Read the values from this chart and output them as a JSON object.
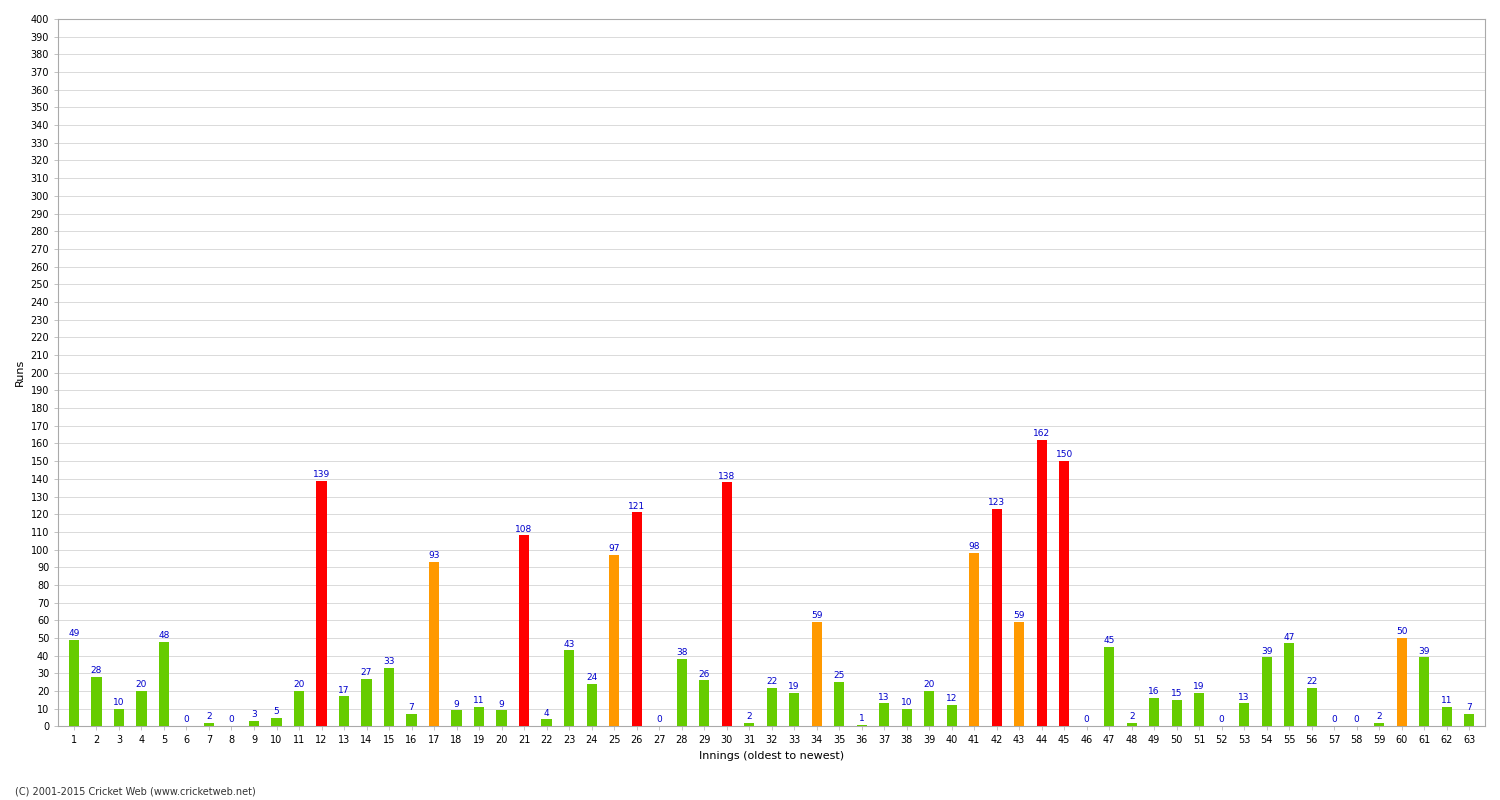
{
  "xlabel": "Innings (oldest to newest)",
  "ylabel": "Runs",
  "background_color": "#ffffff",
  "grid_color": "#cccccc",
  "ylim": [
    0,
    400
  ],
  "innings": [
    {
      "num": 1,
      "runs": 49,
      "color": "#66cc00"
    },
    {
      "num": 2,
      "runs": 28,
      "color": "#66cc00"
    },
    {
      "num": 3,
      "runs": 10,
      "color": "#66cc00"
    },
    {
      "num": 4,
      "runs": 20,
      "color": "#66cc00"
    },
    {
      "num": 5,
      "runs": 48,
      "color": "#66cc00"
    },
    {
      "num": 6,
      "runs": 0,
      "color": "#66cc00"
    },
    {
      "num": 7,
      "runs": 2,
      "color": "#66cc00"
    },
    {
      "num": 8,
      "runs": 0,
      "color": "#66cc00"
    },
    {
      "num": 9,
      "runs": 3,
      "color": "#66cc00"
    },
    {
      "num": 10,
      "runs": 5,
      "color": "#66cc00"
    },
    {
      "num": 11,
      "runs": 20,
      "color": "#66cc00"
    },
    {
      "num": 12,
      "runs": 139,
      "color": "#ff0000"
    },
    {
      "num": 13,
      "runs": 17,
      "color": "#66cc00"
    },
    {
      "num": 14,
      "runs": 27,
      "color": "#66cc00"
    },
    {
      "num": 15,
      "runs": 33,
      "color": "#66cc00"
    },
    {
      "num": 16,
      "runs": 7,
      "color": "#66cc00"
    },
    {
      "num": 17,
      "runs": 93,
      "color": "#ff9900"
    },
    {
      "num": 18,
      "runs": 9,
      "color": "#66cc00"
    },
    {
      "num": 19,
      "runs": 11,
      "color": "#66cc00"
    },
    {
      "num": 20,
      "runs": 9,
      "color": "#66cc00"
    },
    {
      "num": 21,
      "runs": 108,
      "color": "#ff0000"
    },
    {
      "num": 22,
      "runs": 4,
      "color": "#66cc00"
    },
    {
      "num": 23,
      "runs": 43,
      "color": "#66cc00"
    },
    {
      "num": 24,
      "runs": 24,
      "color": "#66cc00"
    },
    {
      "num": 25,
      "runs": 97,
      "color": "#ff9900"
    },
    {
      "num": 26,
      "runs": 121,
      "color": "#ff0000"
    },
    {
      "num": 27,
      "runs": 0,
      "color": "#66cc00"
    },
    {
      "num": 28,
      "runs": 38,
      "color": "#66cc00"
    },
    {
      "num": 29,
      "runs": 26,
      "color": "#66cc00"
    },
    {
      "num": 30,
      "runs": 138,
      "color": "#ff0000"
    },
    {
      "num": 31,
      "runs": 2,
      "color": "#66cc00"
    },
    {
      "num": 32,
      "runs": 22,
      "color": "#66cc00"
    },
    {
      "num": 33,
      "runs": 19,
      "color": "#66cc00"
    },
    {
      "num": 34,
      "runs": 59,
      "color": "#ff9900"
    },
    {
      "num": 35,
      "runs": 25,
      "color": "#66cc00"
    },
    {
      "num": 36,
      "runs": 1,
      "color": "#66cc00"
    },
    {
      "num": 37,
      "runs": 13,
      "color": "#66cc00"
    },
    {
      "num": 38,
      "runs": 10,
      "color": "#66cc00"
    },
    {
      "num": 39,
      "runs": 20,
      "color": "#66cc00"
    },
    {
      "num": 40,
      "runs": 12,
      "color": "#66cc00"
    },
    {
      "num": 41,
      "runs": 98,
      "color": "#ff9900"
    },
    {
      "num": 42,
      "runs": 123,
      "color": "#ff0000"
    },
    {
      "num": 43,
      "runs": 59,
      "color": "#ff9900"
    },
    {
      "num": 44,
      "runs": 162,
      "color": "#ff0000"
    },
    {
      "num": 45,
      "runs": 150,
      "color": "#ff0000"
    },
    {
      "num": 46,
      "runs": 0,
      "color": "#66cc00"
    },
    {
      "num": 47,
      "runs": 45,
      "color": "#66cc00"
    },
    {
      "num": 48,
      "runs": 2,
      "color": "#66cc00"
    },
    {
      "num": 49,
      "runs": 16,
      "color": "#66cc00"
    },
    {
      "num": 50,
      "runs": 15,
      "color": "#66cc00"
    },
    {
      "num": 51,
      "runs": 19,
      "color": "#66cc00"
    },
    {
      "num": 52,
      "runs": 0,
      "color": "#66cc00"
    },
    {
      "num": 53,
      "runs": 13,
      "color": "#66cc00"
    },
    {
      "num": 54,
      "runs": 39,
      "color": "#66cc00"
    },
    {
      "num": 55,
      "runs": 47,
      "color": "#66cc00"
    },
    {
      "num": 56,
      "runs": 22,
      "color": "#66cc00"
    },
    {
      "num": 57,
      "runs": 0,
      "color": "#66cc00"
    },
    {
      "num": 58,
      "runs": 0,
      "color": "#66cc00"
    },
    {
      "num": 59,
      "runs": 2,
      "color": "#66cc00"
    },
    {
      "num": 60,
      "runs": 50,
      "color": "#ff9900"
    },
    {
      "num": 61,
      "runs": 39,
      "color": "#66cc00"
    },
    {
      "num": 62,
      "runs": 11,
      "color": "#66cc00"
    },
    {
      "num": 63,
      "runs": 7,
      "color": "#66cc00"
    }
  ],
  "footer": "(C) 2001-2015 Cricket Web (www.cricketweb.net)",
  "label_fontsize": 6.5,
  "label_color": "#0000cc",
  "ytick_fontsize": 7,
  "xtick_fontsize": 7,
  "axis_label_fontsize": 8,
  "bar_width": 0.45
}
